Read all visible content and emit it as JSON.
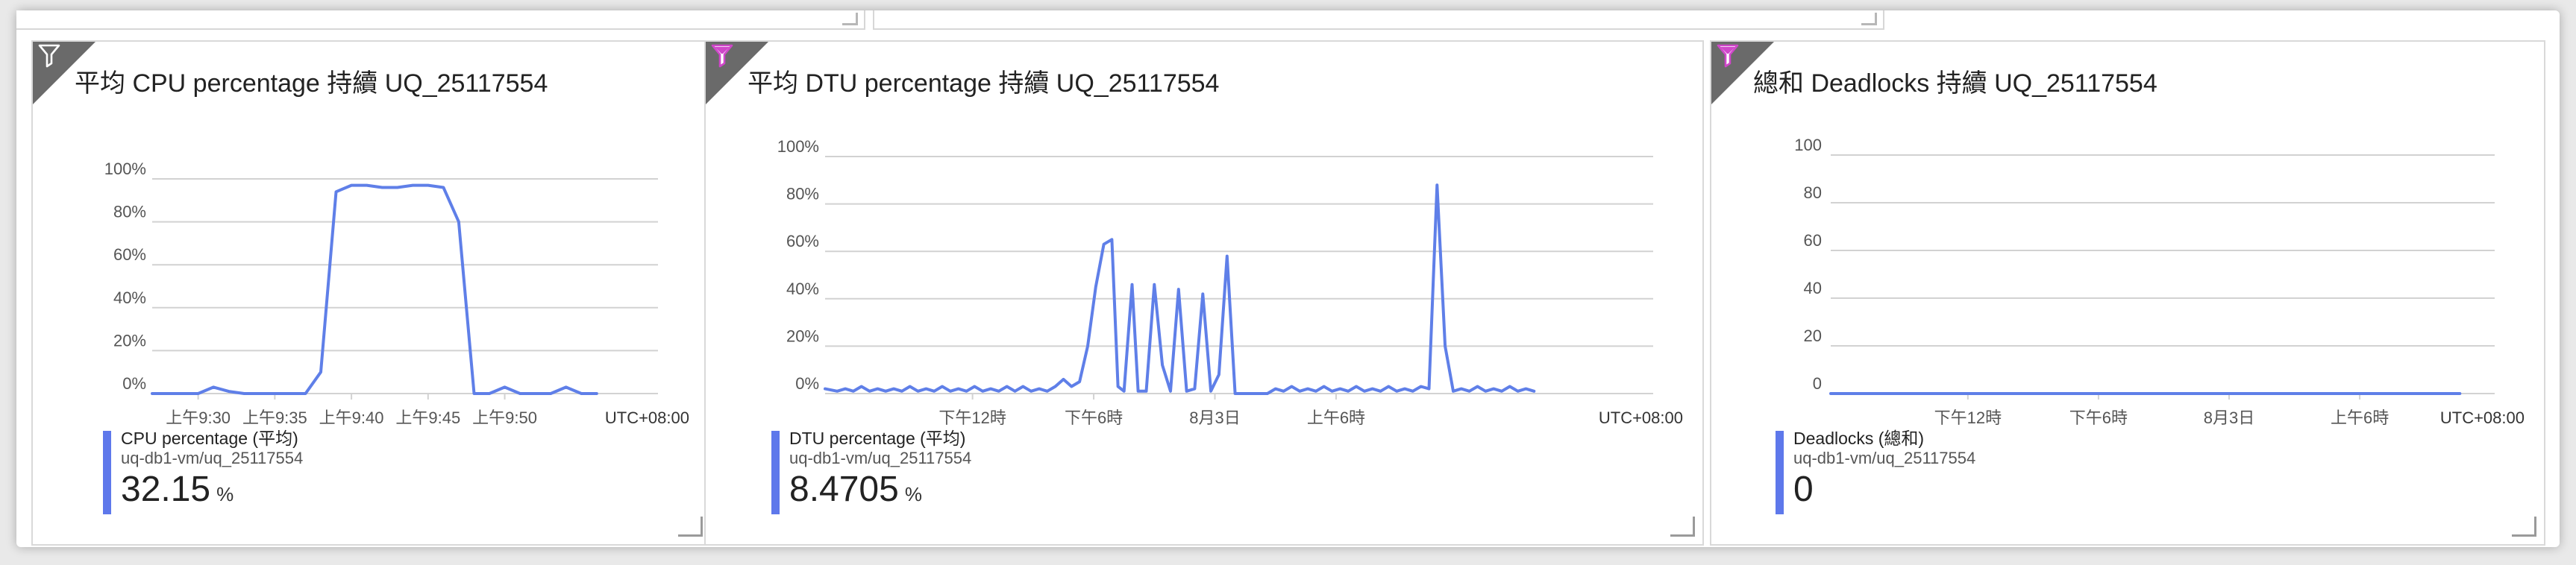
{
  "colors": {
    "series": "#5f7fe8",
    "grid": "#d2d2d2",
    "axis_text": "#555555",
    "filter_tab_cpu": "#6a6a6a",
    "filter_tab_other": "#6a6a6a",
    "filter_icon_cpu": "#ffffff",
    "filter_icon_other": "#cf47c9"
  },
  "tiles": [
    {
      "title": "平均 CPU percentage 持續 UQ_25117554",
      "filter_icon": "filter-icon",
      "legend": {
        "name": "CPU percentage (平均)",
        "resource": "uq-db1-vm/uq_25117554",
        "value": "32.15",
        "unit": "%"
      },
      "timezone": "UTC+08:00"
    },
    {
      "title": "平均 DTU percentage 持續 UQ_25117554",
      "filter_icon": "filter-icon",
      "legend": {
        "name": "DTU percentage (平均)",
        "resource": "uq-db1-vm/uq_25117554",
        "value": "8.4705",
        "unit": "%"
      },
      "timezone": "UTC+08:00"
    },
    {
      "title": "總和 Deadlocks 持續 UQ_25117554",
      "filter_icon": "filter-icon",
      "legend": {
        "name": "Deadlocks (總和)",
        "resource": "uq-db1-vm/uq_25117554",
        "value": "0",
        "unit": ""
      },
      "timezone": "UTC+08:00"
    }
  ],
  "chart_data": [
    {
      "type": "line",
      "title": "平均 CPU percentage 持續 UQ_25117554",
      "x_tick_labels": [
        "上午9:30",
        "上午9:35",
        "上午9:40",
        "上午9:45",
        "上午9:50"
      ],
      "x_tick_positions": [
        0,
        5,
        10,
        15,
        20
      ],
      "xlim": [
        -3,
        30
      ],
      "y_tick_labels": [
        "0%",
        "20%",
        "40%",
        "60%",
        "80%",
        "100%"
      ],
      "ylim": [
        0,
        100
      ],
      "grid": true,
      "series": [
        {
          "name": "CPU percentage (平均)",
          "x": [
            -3,
            0,
            1,
            2,
            3,
            4,
            5,
            6,
            7,
            8,
            9,
            10,
            11,
            12,
            13,
            14,
            15,
            16,
            17,
            18,
            19,
            20,
            21,
            22,
            23,
            24,
            25,
            26
          ],
          "values": [
            0,
            0,
            3,
            1,
            0,
            0,
            0,
            0,
            0,
            10,
            94,
            97,
            97,
            96,
            96,
            97,
            97,
            96,
            80,
            0,
            0,
            3,
            0,
            0,
            0,
            3,
            0,
            0
          ]
        }
      ]
    },
    {
      "type": "line",
      "title": "平均 DTU percentage 持續 UQ_25117554",
      "x_tick_labels": [
        "下午12時",
        "下午6時",
        "8月3日",
        "上午6時"
      ],
      "x_tick_positions": [
        12,
        18,
        24,
        30
      ],
      "xlim": [
        4.7,
        45.7
      ],
      "y_tick_labels": [
        "0%",
        "20%",
        "40%",
        "60%",
        "80%",
        "100%"
      ],
      "ylim": [
        0,
        100
      ],
      "grid": true,
      "series": [
        {
          "name": "DTU percentage (平均)",
          "x": [
            4.7,
            5.3,
            5.7,
            6.1,
            6.5,
            6.9,
            7.3,
            7.7,
            8.1,
            8.5,
            8.9,
            9.3,
            9.7,
            10.1,
            10.5,
            10.9,
            11.3,
            11.7,
            12.1,
            12.5,
            12.9,
            13.3,
            13.7,
            14.1,
            14.5,
            14.9,
            15.3,
            15.7,
            16.1,
            16.5,
            16.9,
            17.3,
            17.7,
            18.1,
            18.5,
            18.9,
            19.2,
            19.5,
            19.9,
            20.2,
            20.6,
            21.0,
            21.4,
            21.8,
            22.2,
            22.6,
            23.0,
            23.4,
            23.8,
            24.2,
            24.6,
            25.0,
            25.4,
            25.8,
            26.2,
            26.6,
            27.0,
            27.4,
            27.8,
            28.2,
            28.6,
            29.0,
            29.4,
            29.8,
            30.2,
            30.6,
            31.0,
            31.4,
            31.8,
            32.2,
            32.6,
            33.0,
            33.4,
            33.8,
            34.2,
            34.6,
            35.0,
            35.4,
            35.8,
            36.2,
            36.6,
            37.0,
            37.4,
            37.8,
            38.2,
            38.6,
            39.0,
            39.4,
            39.8
          ],
          "values": [
            2,
            1,
            2,
            1,
            3,
            1,
            2,
            1,
            2,
            1,
            3,
            1,
            2,
            1,
            3,
            1,
            2,
            1,
            3,
            1,
            2,
            1,
            3,
            1,
            3,
            1,
            2,
            1,
            3,
            6,
            3,
            5,
            20,
            45,
            63,
            65,
            3,
            1,
            46,
            1,
            1,
            46,
            12,
            1,
            44,
            1,
            2,
            42,
            1,
            8,
            58,
            0,
            0,
            0,
            0,
            0,
            2,
            1,
            3,
            1,
            2,
            1,
            3,
            1,
            2,
            1,
            3,
            1,
            2,
            1,
            3,
            1,
            2,
            1,
            3,
            2,
            88,
            20,
            1,
            2,
            1,
            3,
            1,
            2,
            1,
            3,
            1,
            2,
            1
          ]
        }
      ]
    },
    {
      "type": "line",
      "title": "總和 Deadlocks 持續 UQ_25117554",
      "x_tick_labels": [
        "下午12時",
        "下午6時",
        "8月3日",
        "上午6時"
      ],
      "x_tick_positions": [
        12,
        18,
        24,
        30
      ],
      "xlim": [
        5.7,
        36.2
      ],
      "y_tick_labels": [
        "0",
        "20",
        "40",
        "60",
        "80",
        "100"
      ],
      "ylim": [
        0,
        100
      ],
      "grid": true,
      "series": [
        {
          "name": "Deadlocks (總和)",
          "x": [
            5.7,
            34.6
          ],
          "values": [
            0,
            0
          ]
        }
      ]
    }
  ]
}
